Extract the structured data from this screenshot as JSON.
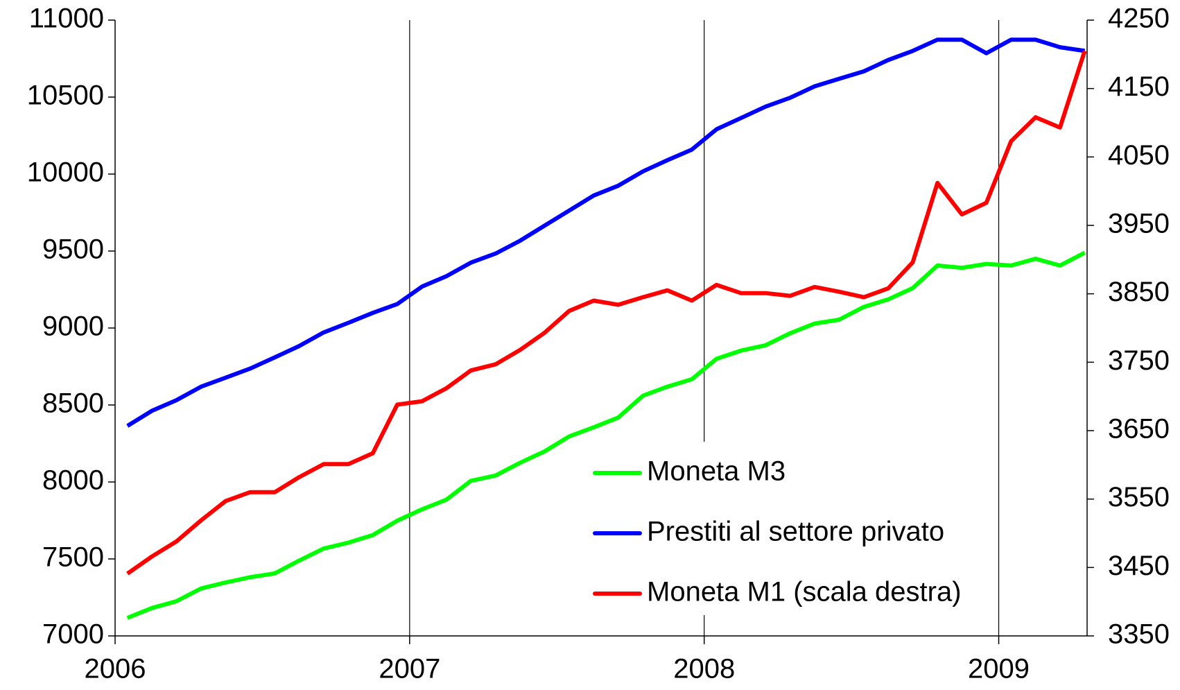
{
  "chart_data": {
    "type": "line",
    "x": [
      2006.042,
      2006.125,
      2006.208,
      2006.292,
      2006.375,
      2006.458,
      2006.542,
      2006.625,
      2006.708,
      2006.792,
      2006.875,
      2006.958,
      2007.042,
      2007.125,
      2007.208,
      2007.292,
      2007.375,
      2007.458,
      2007.542,
      2007.625,
      2007.708,
      2007.792,
      2007.875,
      2007.958,
      2008.042,
      2008.125,
      2008.208,
      2008.292,
      2008.375,
      2008.458,
      2008.542,
      2008.625,
      2008.708,
      2008.792,
      2008.875,
      2008.958,
      2009.042,
      2009.125,
      2009.208,
      2009.292
    ],
    "series": [
      {
        "name": "Moneta M3",
        "color": "#00ff00",
        "values": [
          7117,
          7181,
          7225,
          7308,
          7347,
          7381,
          7406,
          7489,
          7567,
          7606,
          7655,
          7748,
          7822,
          7885,
          8007,
          8042,
          8125,
          8198,
          8296,
          8355,
          8418,
          8560,
          8619,
          8667,
          8800,
          8853,
          8888,
          8966,
          9029,
          9054,
          9137,
          9186,
          9259,
          9406,
          9391,
          9416,
          9406,
          9450,
          9406,
          9489
        ]
      },
      {
        "name": "Prestiti al settore privato",
        "color": "#0000ff",
        "values": [
          8364,
          8462,
          8531,
          8619,
          8677,
          8736,
          8809,
          8883,
          8971,
          9034,
          9098,
          9156,
          9269,
          9337,
          9425,
          9484,
          9567,
          9665,
          9763,
          9861,
          9924,
          10017,
          10090,
          10159,
          10291,
          10364,
          10438,
          10496,
          10570,
          10619,
          10667,
          10741,
          10800,
          10873,
          10873,
          10785,
          10873,
          10873,
          10824,
          10800
        ]
      },
      {
        "name": "Moneta M1 (scala destra)",
        "color": "#ff0000",
        "axis": "y2",
        "values": [
          3441,
          3466,
          3488,
          3519,
          3547,
          3560,
          3560,
          3582,
          3601,
          3601,
          3617,
          3688,
          3693,
          3712,
          3738,
          3747,
          3768,
          3793,
          3825,
          3840,
          3834,
          3845,
          3855,
          3840,
          3863,
          3851,
          3851,
          3847,
          3860,
          3853,
          3845,
          3858,
          3896,
          4012,
          3966,
          3983,
          4073,
          4108,
          4093,
          4205
        ]
      }
    ],
    "xlim": [
      2006,
      2009.3
    ],
    "xticks": [
      2006,
      2007,
      2008,
      2009
    ],
    "ylim": [
      7000,
      11000
    ],
    "yticks": [
      7000,
      7500,
      8000,
      8500,
      9000,
      9500,
      10000,
      10500,
      11000
    ],
    "y2lim": [
      3350,
      4250
    ],
    "y2ticks": [
      3350,
      3450,
      3550,
      3650,
      3750,
      3850,
      3950,
      4050,
      4150,
      4250
    ],
    "grid": "x",
    "legend_position": "lower right"
  }
}
